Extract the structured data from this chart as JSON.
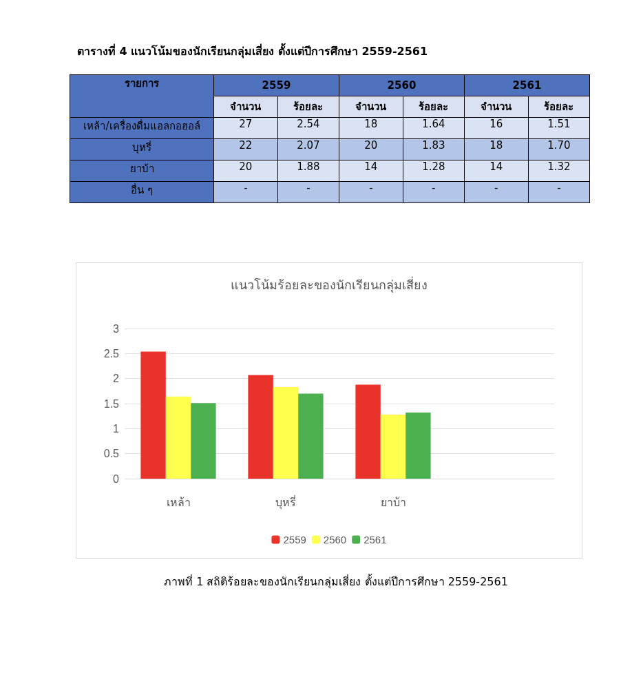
{
  "chart_data": [
    {
      "type": "other",
      "title": "ตารางที่ 4 แนวโน้มของนักเรียนกลุ่มเสี่ยง ตั้งแต่ปีการศึกษา 2559-2561",
      "annotations": [
        "รายการ",
        "2559",
        "2560",
        "2561",
        "จำนวน",
        "ร้อยละ",
        "จำนวน",
        "ร้อยละ",
        "จำนวน",
        "ร้อยละ",
        "เหล้า/เครื่องดื่มแอลกอฮอล์",
        "27",
        "2.54",
        "18",
        "1.64",
        "16",
        "1.51",
        "บุหรี่",
        "22",
        "2.07",
        "20",
        "1.83",
        "18",
        "1.70",
        "ยาบ้า",
        "20",
        "1.88",
        "14",
        "1.28",
        "14",
        "1.32",
        "อื่น ๆ",
        "-",
        "-",
        "-",
        "-",
        "-",
        "-"
      ]
    },
    {
      "type": "bar",
      "title": "แนวโน้มร้อยละของนักเรียนกลุ่มเสี่ยง",
      "categories": [
        "เหล้า",
        "บุหรี่",
        "ยาบ้า",
        null
      ],
      "series": [
        {
          "name": "2559",
          "color": "#e8322a",
          "values": [
            2.54,
            2.07,
            1.88,
            null
          ]
        },
        {
          "name": "2560",
          "color": "#ffff4d",
          "values": [
            1.64,
            1.83,
            1.28,
            null
          ]
        },
        {
          "name": "2561",
          "color": "#4caf50",
          "values": [
            1.51,
            1.7,
            1.32,
            null
          ]
        }
      ],
      "ylim": [
        0,
        3
      ],
      "yticks": [
        0,
        0.5,
        1,
        1.5,
        2,
        2.5,
        3
      ],
      "grid": "y",
      "legend": "bottom",
      "annotations": [
        "ภาพที่ 1 สถิติร้อยละของนักเรียนกลุ่มเสี่ยง ตั้งแต่ปีการศึกษา 2559-2561"
      ]
    }
  ]
}
